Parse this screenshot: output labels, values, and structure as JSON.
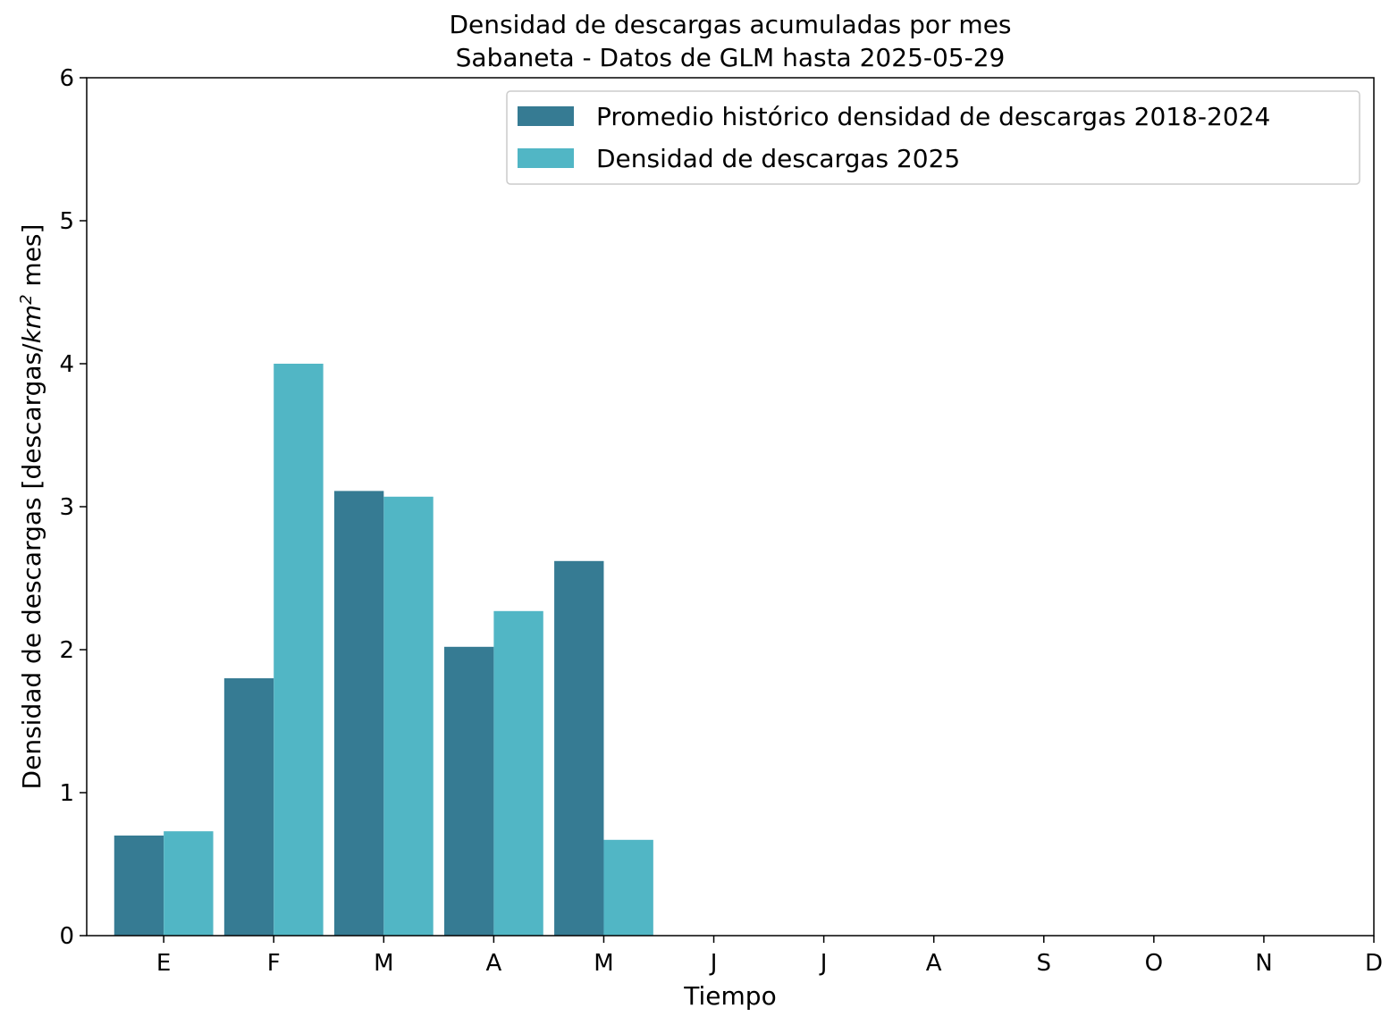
{
  "chart_data": {
    "type": "bar",
    "title": "Densidad de descargas acumuladas por mes",
    "subtitle": "Sabaneta - Datos de GLM hasta 2025-05-29",
    "xlabel": "Tiempo",
    "ylabel_prefix": "Densidad de descargas [descargas/",
    "ylabel_unit_base": "km",
    "ylabel_unit_exp": "2",
    "ylabel_suffix": " mes]",
    "categories": [
      "E",
      "F",
      "M",
      "A",
      "M",
      "J",
      "J",
      "A",
      "S",
      "O",
      "N",
      "D"
    ],
    "series": [
      {
        "name": "Promedio histórico densidad de descargas 2018-2024",
        "color": "#367b93",
        "values": [
          0.7,
          1.8,
          3.11,
          2.02,
          2.62,
          null,
          null,
          null,
          null,
          null,
          null,
          null
        ]
      },
      {
        "name": "Densidad de descargas 2025",
        "color": "#51b6c5",
        "values": [
          0.73,
          4.0,
          3.07,
          2.27,
          0.67,
          null,
          null,
          null,
          null,
          null,
          null,
          null
        ]
      }
    ],
    "ylim": [
      0,
      6
    ],
    "yticks": [
      0,
      1,
      2,
      3,
      4,
      5,
      6
    ],
    "grid": false,
    "legend_position": "top-right"
  }
}
